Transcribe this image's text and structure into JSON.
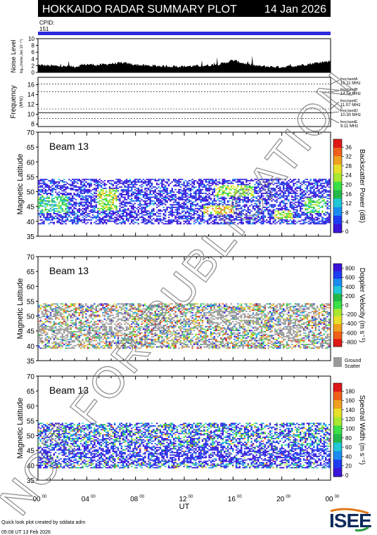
{
  "header": {
    "title": "HOKKAIDO RADAR SUMMARY PLOT",
    "date": "14 Jan 2026",
    "cpid_label": "CPID:",
    "cpid_value": "151"
  },
  "colors": {
    "header_bg": "#000000",
    "header_text": "#ffffff",
    "cpid_bar": "#2a2ae0",
    "ground_scatter": "#9a9a9a",
    "noise_fill": "#000000"
  },
  "chart_data": [
    {
      "type": "area",
      "panel": "noise",
      "ylabel": "Noise Level",
      "ylabel_small": "log₁₀(noise,Jan 10⁻¹⁰)",
      "yticks": [
        "0",
        "2",
        "4",
        "6",
        "8",
        "10"
      ],
      "ylim": [
        0,
        10
      ],
      "xlim": [
        0,
        24
      ],
      "x": [
        0,
        1,
        2,
        3,
        4,
        5,
        6,
        7,
        8,
        9,
        10,
        11,
        12,
        13,
        14,
        15,
        16,
        17,
        18,
        19,
        20,
        21,
        22,
        23,
        24
      ],
      "values": [
        2.2,
        2.0,
        1.8,
        1.7,
        2.4,
        2.2,
        2.6,
        2.8,
        2.3,
        2.0,
        1.9,
        1.8,
        1.8,
        1.9,
        2.1,
        2.5,
        3.6,
        2.6,
        1.9,
        1.7,
        1.6,
        1.9,
        2.4,
        2.9,
        3.4
      ]
    },
    {
      "type": "line",
      "panel": "frequency",
      "ylabel": "Frequency",
      "ylabel_unit": "(MHz)",
      "yticks": [
        "8",
        "10",
        "12",
        "14",
        "16"
      ],
      "ylim": [
        7.5,
        17.5
      ],
      "xlim": [
        0,
        24
      ],
      "bands": [
        {
          "name": "freq bandA",
          "freq": 16.11,
          "label": "16.11 MHz",
          "style": "dashed"
        },
        {
          "name": "freq bandB",
          "freq": 14.54,
          "label": "14.54 MHz",
          "style": "dashed"
        },
        {
          "name": "freq bandC",
          "freq": 11.07,
          "label": "11.07 MHz",
          "style": "dashed"
        },
        {
          "name": "freq bandD",
          "freq": 10.3,
          "label": "10.30 MHz",
          "style": "solid"
        },
        {
          "name": "freq bandE",
          "freq": 9.11,
          "label": "9.11 MHz",
          "style": "dashed"
        }
      ]
    },
    {
      "type": "heatmap",
      "panel": "power",
      "beam_label": "Beam 13",
      "ylabel": "Magnetic Latitude",
      "yticks": [
        "35",
        "40",
        "45",
        "50",
        "55",
        "60",
        "65",
        "70"
      ],
      "ylim": [
        35,
        70
      ],
      "xlim": [
        0,
        24
      ],
      "colorbar_label": "Backscatter Power (dB)",
      "colorbar_ticks": [
        "0",
        "4",
        "8",
        "12",
        "16",
        "20",
        "24",
        "28",
        "32",
        "36"
      ],
      "colorbar_colors": [
        "#3a14d8",
        "#1e3cf0",
        "#1a8cf0",
        "#20c8d8",
        "#22b84a",
        "#3ae048",
        "#a8e830",
        "#e8e028",
        "#f0a020",
        "#f06018",
        "#e01818"
      ],
      "features": [
        {
          "x0": 0.0,
          "x1": 2.4,
          "lat0": 43.0,
          "lat1": 49.0,
          "intensity": 14
        },
        {
          "x0": 4.8,
          "x1": 6.4,
          "lat0": 44.0,
          "lat1": 51.0,
          "intensity": 22
        },
        {
          "x0": 14.4,
          "x1": 17.6,
          "lat0": 48.5,
          "lat1": 52.5,
          "intensity": 20
        },
        {
          "x0": 13.5,
          "x1": 16.0,
          "lat0": 42.5,
          "lat1": 45.5,
          "intensity": 26
        },
        {
          "x0": 19.3,
          "x1": 20.8,
          "lat0": 41.0,
          "lat1": 44.0,
          "intensity": 22
        },
        {
          "x0": 21.8,
          "x1": 23.6,
          "lat0": 43.0,
          "lat1": 48.0,
          "intensity": 16
        }
      ]
    },
    {
      "type": "heatmap",
      "panel": "velocity",
      "beam_label": "Beam 13",
      "ylabel": "Magnetic Latitude",
      "yticks": [
        "35",
        "40",
        "45",
        "50",
        "55",
        "60",
        "65",
        "70"
      ],
      "ylim": [
        35,
        70
      ],
      "xlim": [
        0,
        24
      ],
      "colorbar_label": "Doppler Velocity (m s⁻¹)",
      "colorbar_ticks": [
        "800",
        "600",
        "400",
        "200",
        "0",
        "-200",
        "-400",
        "-600",
        "-800"
      ],
      "colorbar_colors": [
        "#3a14d8",
        "#1e3cf0",
        "#1a8cf0",
        "#20c8d8",
        "#22b84a",
        "#3ae048",
        "#a8e830",
        "#e8e028",
        "#f0a020",
        "#f06018",
        "#e01818"
      ],
      "ground_scatter_label": [
        "Ground",
        "Scatter"
      ],
      "features": [
        {
          "x0": 0.0,
          "x1": 2.6,
          "lat0": 43.0,
          "lat1": 47.0,
          "intensity": 0
        },
        {
          "x0": 5.0,
          "x1": 7.5,
          "lat0": 44.5,
          "lat1": 51.0,
          "intensity": 0
        },
        {
          "x0": 14.0,
          "x1": 18.0,
          "lat0": 47.0,
          "lat1": 52.0,
          "intensity": 0
        },
        {
          "x0": 19.5,
          "x1": 21.5,
          "lat0": 44.0,
          "lat1": 49.0,
          "intensity": 0
        }
      ]
    },
    {
      "type": "heatmap",
      "panel": "width",
      "beam_label": "Beam 13",
      "ylabel": "Magnetic Latitude",
      "yticks": [
        "35",
        "40",
        "45",
        "50",
        "55",
        "60",
        "65",
        "70"
      ],
      "ylim": [
        35,
        70
      ],
      "xlim": [
        0,
        24
      ],
      "colorbar_label": "Spectral Width (m s⁻¹)",
      "colorbar_ticks": [
        "0",
        "20",
        "40",
        "60",
        "80",
        "100",
        "120",
        "140",
        "160",
        "180"
      ],
      "colorbar_colors": [
        "#3a14d8",
        "#1e3cf0",
        "#1a8cf0",
        "#20c8d8",
        "#22b84a",
        "#3ae048",
        "#a8e830",
        "#e8e028",
        "#f0a020",
        "#f06018",
        "#e01818"
      ],
      "features": [
        {
          "x0": 0.0,
          "x1": 24.0,
          "lat0": 41.0,
          "lat1": 46.5,
          "intensity": 10
        }
      ]
    }
  ],
  "xaxis": {
    "ticks": [
      "00",
      "04",
      "08",
      "12",
      "16",
      "20",
      "00"
    ],
    "tick_sup": "00",
    "label": "UT"
  },
  "watermark": "NOT FOR PUBLICATION",
  "footer": {
    "line1": "Quick look plot created by sddata adm",
    "line2": "05:08 UT 13 Feb 2026"
  },
  "logo": "ISEE"
}
